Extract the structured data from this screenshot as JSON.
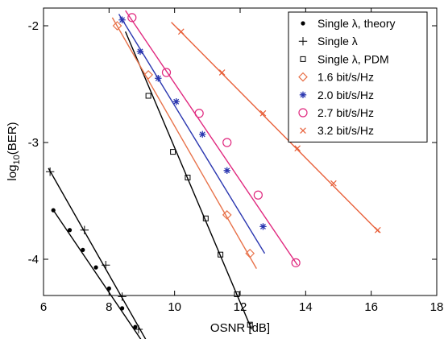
{
  "chart_data": {
    "type": "scatter",
    "xlabel": "OSNR [dB]",
    "ylabel": "log10(BER)",
    "ylabel_prefix": "log",
    "ylabel_sub": "10",
    "ylabel_suffix": "(BER)",
    "xlim": [
      6,
      18
    ],
    "ylim": [
      -4.4,
      -1.8
    ],
    "xticks": [
      6,
      8,
      10,
      12,
      14,
      16,
      18
    ],
    "yticks": [
      -2,
      -3,
      -4
    ],
    "grid": false,
    "legend_position": "top-right",
    "series": [
      {
        "name": "Single λ, theory",
        "marker": "dot",
        "color": "#000000",
        "points": [
          [
            6.3,
            -3.58
          ],
          [
            6.8,
            -3.75
          ],
          [
            7.2,
            -3.92
          ],
          [
            7.6,
            -4.07
          ],
          [
            8.0,
            -4.25
          ],
          [
            8.4,
            -4.42
          ],
          [
            8.8,
            -4.58
          ],
          [
            9.1,
            -4.74
          ]
        ],
        "fit": [
          [
            6.3,
            -3.58
          ],
          [
            9.15,
            -4.76
          ]
        ]
      },
      {
        "name": "Single λ",
        "marker": "plus",
        "color": "#000000",
        "points": [
          [
            6.2,
            -3.25
          ],
          [
            7.25,
            -3.75
          ],
          [
            7.9,
            -4.05
          ],
          [
            8.4,
            -4.32
          ],
          [
            8.9,
            -4.6
          ],
          [
            9.25,
            -4.75
          ]
        ],
        "fit": [
          [
            6.15,
            -3.22
          ],
          [
            9.35,
            -4.8
          ]
        ]
      },
      {
        "name": "Single λ, PDM",
        "marker": "square",
        "color": "#000000",
        "points": [
          [
            9.2,
            -2.6
          ],
          [
            9.95,
            -3.08
          ],
          [
            10.4,
            -3.3
          ],
          [
            10.95,
            -3.65
          ],
          [
            11.4,
            -3.96
          ],
          [
            11.9,
            -4.3
          ],
          [
            12.3,
            -4.56
          ]
        ],
        "fit": [
          [
            8.5,
            -2.05
          ],
          [
            12.35,
            -4.6
          ]
        ]
      },
      {
        "name": "1.6 bit/s/Hz",
        "marker": "diamond",
        "color": "#e8724a",
        "points": [
          [
            8.25,
            -2.0
          ],
          [
            9.2,
            -2.42
          ],
          [
            11.6,
            -3.62
          ],
          [
            12.3,
            -3.95
          ]
        ],
        "fit": [
          [
            8.1,
            -1.93
          ],
          [
            12.5,
            -4.08
          ]
        ]
      },
      {
        "name": "2.0 bit/s/Hz",
        "marker": "asterisk",
        "color": "#2b37b0",
        "points": [
          [
            8.4,
            -1.95
          ],
          [
            8.95,
            -2.22
          ],
          [
            9.5,
            -2.45
          ],
          [
            10.05,
            -2.65
          ],
          [
            10.85,
            -2.93
          ],
          [
            11.6,
            -3.24
          ],
          [
            12.7,
            -3.72
          ]
        ],
        "fit": [
          [
            8.3,
            -1.9
          ],
          [
            12.75,
            -3.95
          ]
        ]
      },
      {
        "name": "2.7 bit/s/Hz",
        "marker": "circle",
        "color": "#e0297f",
        "points": [
          [
            8.7,
            -1.93
          ],
          [
            9.75,
            -2.4
          ],
          [
            10.75,
            -2.75
          ],
          [
            11.6,
            -3.0
          ],
          [
            12.55,
            -3.45
          ],
          [
            13.7,
            -4.03
          ]
        ],
        "fit": [
          [
            8.5,
            -1.87
          ],
          [
            13.75,
            -4.05
          ]
        ]
      },
      {
        "name": "3.2 bit/s/Hz",
        "marker": "cross",
        "color": "#e8603a",
        "points": [
          [
            10.2,
            -2.05
          ],
          [
            11.45,
            -2.4
          ],
          [
            12.7,
            -2.75
          ],
          [
            13.75,
            -3.05
          ],
          [
            14.85,
            -3.35
          ],
          [
            16.2,
            -3.75
          ]
        ],
        "fit": [
          [
            9.9,
            -1.97
          ],
          [
            16.25,
            -3.77
          ]
        ]
      }
    ]
  }
}
